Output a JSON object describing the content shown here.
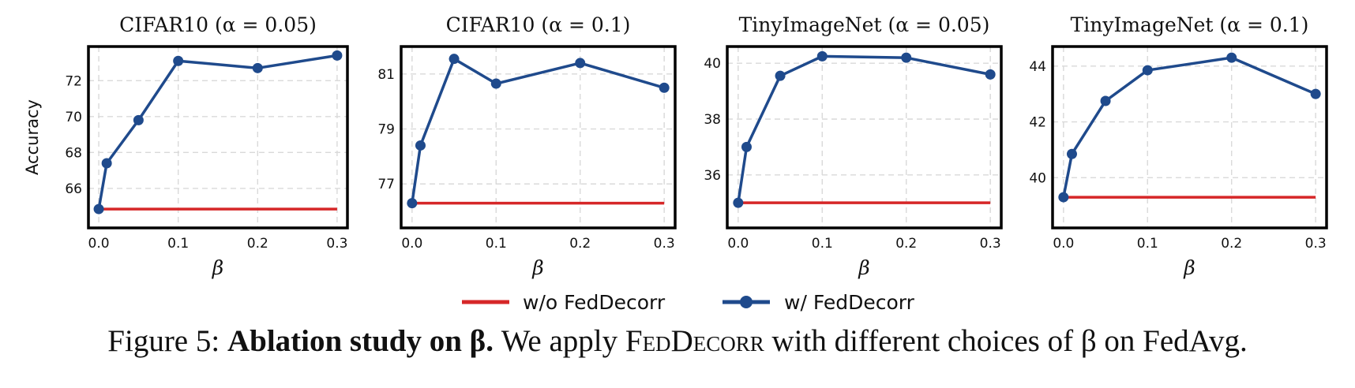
{
  "colors": {
    "baseline": "#d62728",
    "method": "#1f4a8c",
    "grid": "#d9d9d9",
    "frame": "#000000"
  },
  "chart_data": [
    {
      "type": "line",
      "title": "CIFAR10 (α = 0.05)",
      "xlabel": "β",
      "ylabel": "Accuracy",
      "x": [
        0.0,
        0.01,
        0.05,
        0.1,
        0.2,
        0.3
      ],
      "xticks": [
        "0.0",
        "0.1",
        "0.2",
        "0.3"
      ],
      "yticks": [
        "66",
        "68",
        "70",
        "72"
      ],
      "xlim": [
        -0.013,
        0.313
      ],
      "ylim": [
        63.8,
        73.9
      ],
      "grid": true,
      "series": [
        {
          "name": "w/o FedDecorr",
          "values": [
            64.85,
            64.85,
            64.85,
            64.85,
            64.85,
            64.85
          ]
        },
        {
          "name": "w/ FedDecorr",
          "values": [
            64.85,
            67.4,
            69.8,
            73.1,
            72.7,
            73.4
          ]
        }
      ]
    },
    {
      "type": "line",
      "title": "CIFAR10 (α = 0.1)",
      "xlabel": "β",
      "ylabel": "",
      "x": [
        0.0,
        0.01,
        0.05,
        0.1,
        0.2,
        0.3
      ],
      "xticks": [
        "0.0",
        "0.1",
        "0.2",
        "0.3"
      ],
      "yticks": [
        "77",
        "79",
        "81"
      ],
      "xlim": [
        -0.013,
        0.313
      ],
      "ylim": [
        75.4,
        82.0
      ],
      "grid": true,
      "series": [
        {
          "name": "w/o FedDecorr",
          "values": [
            76.3,
            76.3,
            76.3,
            76.3,
            76.3,
            76.3
          ]
        },
        {
          "name": "w/ FedDecorr",
          "values": [
            76.3,
            78.4,
            81.55,
            80.65,
            81.4,
            80.5
          ]
        }
      ]
    },
    {
      "type": "line",
      "title": "TinyImageNet (α = 0.05)",
      "xlabel": "β",
      "ylabel": "",
      "x": [
        0.0,
        0.01,
        0.05,
        0.1,
        0.2,
        0.3
      ],
      "xticks": [
        "0.0",
        "0.1",
        "0.2",
        "0.3"
      ],
      "yticks": [
        "36",
        "38",
        "40"
      ],
      "xlim": [
        -0.013,
        0.313
      ],
      "ylim": [
        34.1,
        40.6
      ],
      "grid": true,
      "series": [
        {
          "name": "w/o FedDecorr",
          "values": [
            35.0,
            35.0,
            35.0,
            35.0,
            35.0,
            35.0
          ]
        },
        {
          "name": "w/ FedDecorr",
          "values": [
            35.0,
            37.0,
            39.55,
            40.25,
            40.2,
            39.6
          ]
        }
      ]
    },
    {
      "type": "line",
      "title": "TinyImageNet (α = 0.1)",
      "xlabel": "β",
      "ylabel": "",
      "x": [
        0.0,
        0.01,
        0.05,
        0.1,
        0.2,
        0.3
      ],
      "xticks": [
        "0.0",
        "0.1",
        "0.2",
        "0.3"
      ],
      "yticks": [
        "40",
        "42",
        "44"
      ],
      "xlim": [
        -0.013,
        0.313
      ],
      "ylim": [
        38.2,
        44.7
      ],
      "grid": true,
      "series": [
        {
          "name": "w/o FedDecorr",
          "values": [
            39.3,
            39.3,
            39.3,
            39.3,
            39.3,
            39.3
          ]
        },
        {
          "name": "w/ FedDecorr",
          "values": [
            39.3,
            40.85,
            42.75,
            43.85,
            44.3,
            43.0
          ]
        }
      ]
    }
  ],
  "legend": {
    "position": "bottom-center",
    "items": [
      {
        "label": "w/o FedDecorr",
        "marker": false
      },
      {
        "label": "w/ FedDecorr",
        "marker": true
      }
    ]
  },
  "caption": {
    "prefix": "Figure 5: ",
    "bold": "Ablation study on β.",
    "text_before": " We apply ",
    "method_first": "F",
    "method_rest": "ed",
    "method_first2": "D",
    "method_rest2": "ecorr",
    "text_after": " with different choices of β on FedAvg."
  }
}
